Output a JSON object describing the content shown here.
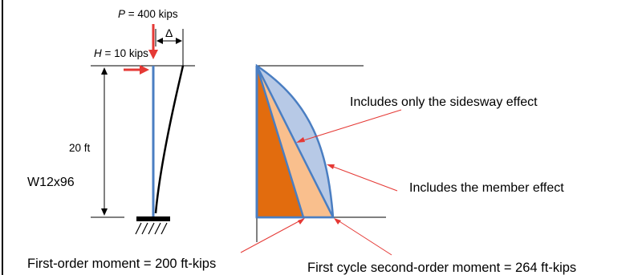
{
  "loads": {
    "p_label": "P",
    "p_value": " = 400 kips",
    "h_label": "H",
    "h_value": " = 10 kips",
    "delta_symbol": "Δ"
  },
  "column": {
    "height_label": "20 ft",
    "section_label": "W12x96"
  },
  "annotations": {
    "sidesway": "Includes only the sidesway effect",
    "member": "Includes the member effect",
    "first_order": "First-order moment = 200 ft-kips",
    "second_order": "First cycle second-order moment = 264 ft-kips"
  },
  "colors": {
    "load_arrow": "#e53935",
    "column": "#4a7ec2",
    "first_order_fill": "#e26c0e",
    "sidesway_fill": "#f9bf8d",
    "member_fill": "#b7c9e6",
    "outline": "#4a7ec2",
    "pointer": "#e53935"
  }
}
